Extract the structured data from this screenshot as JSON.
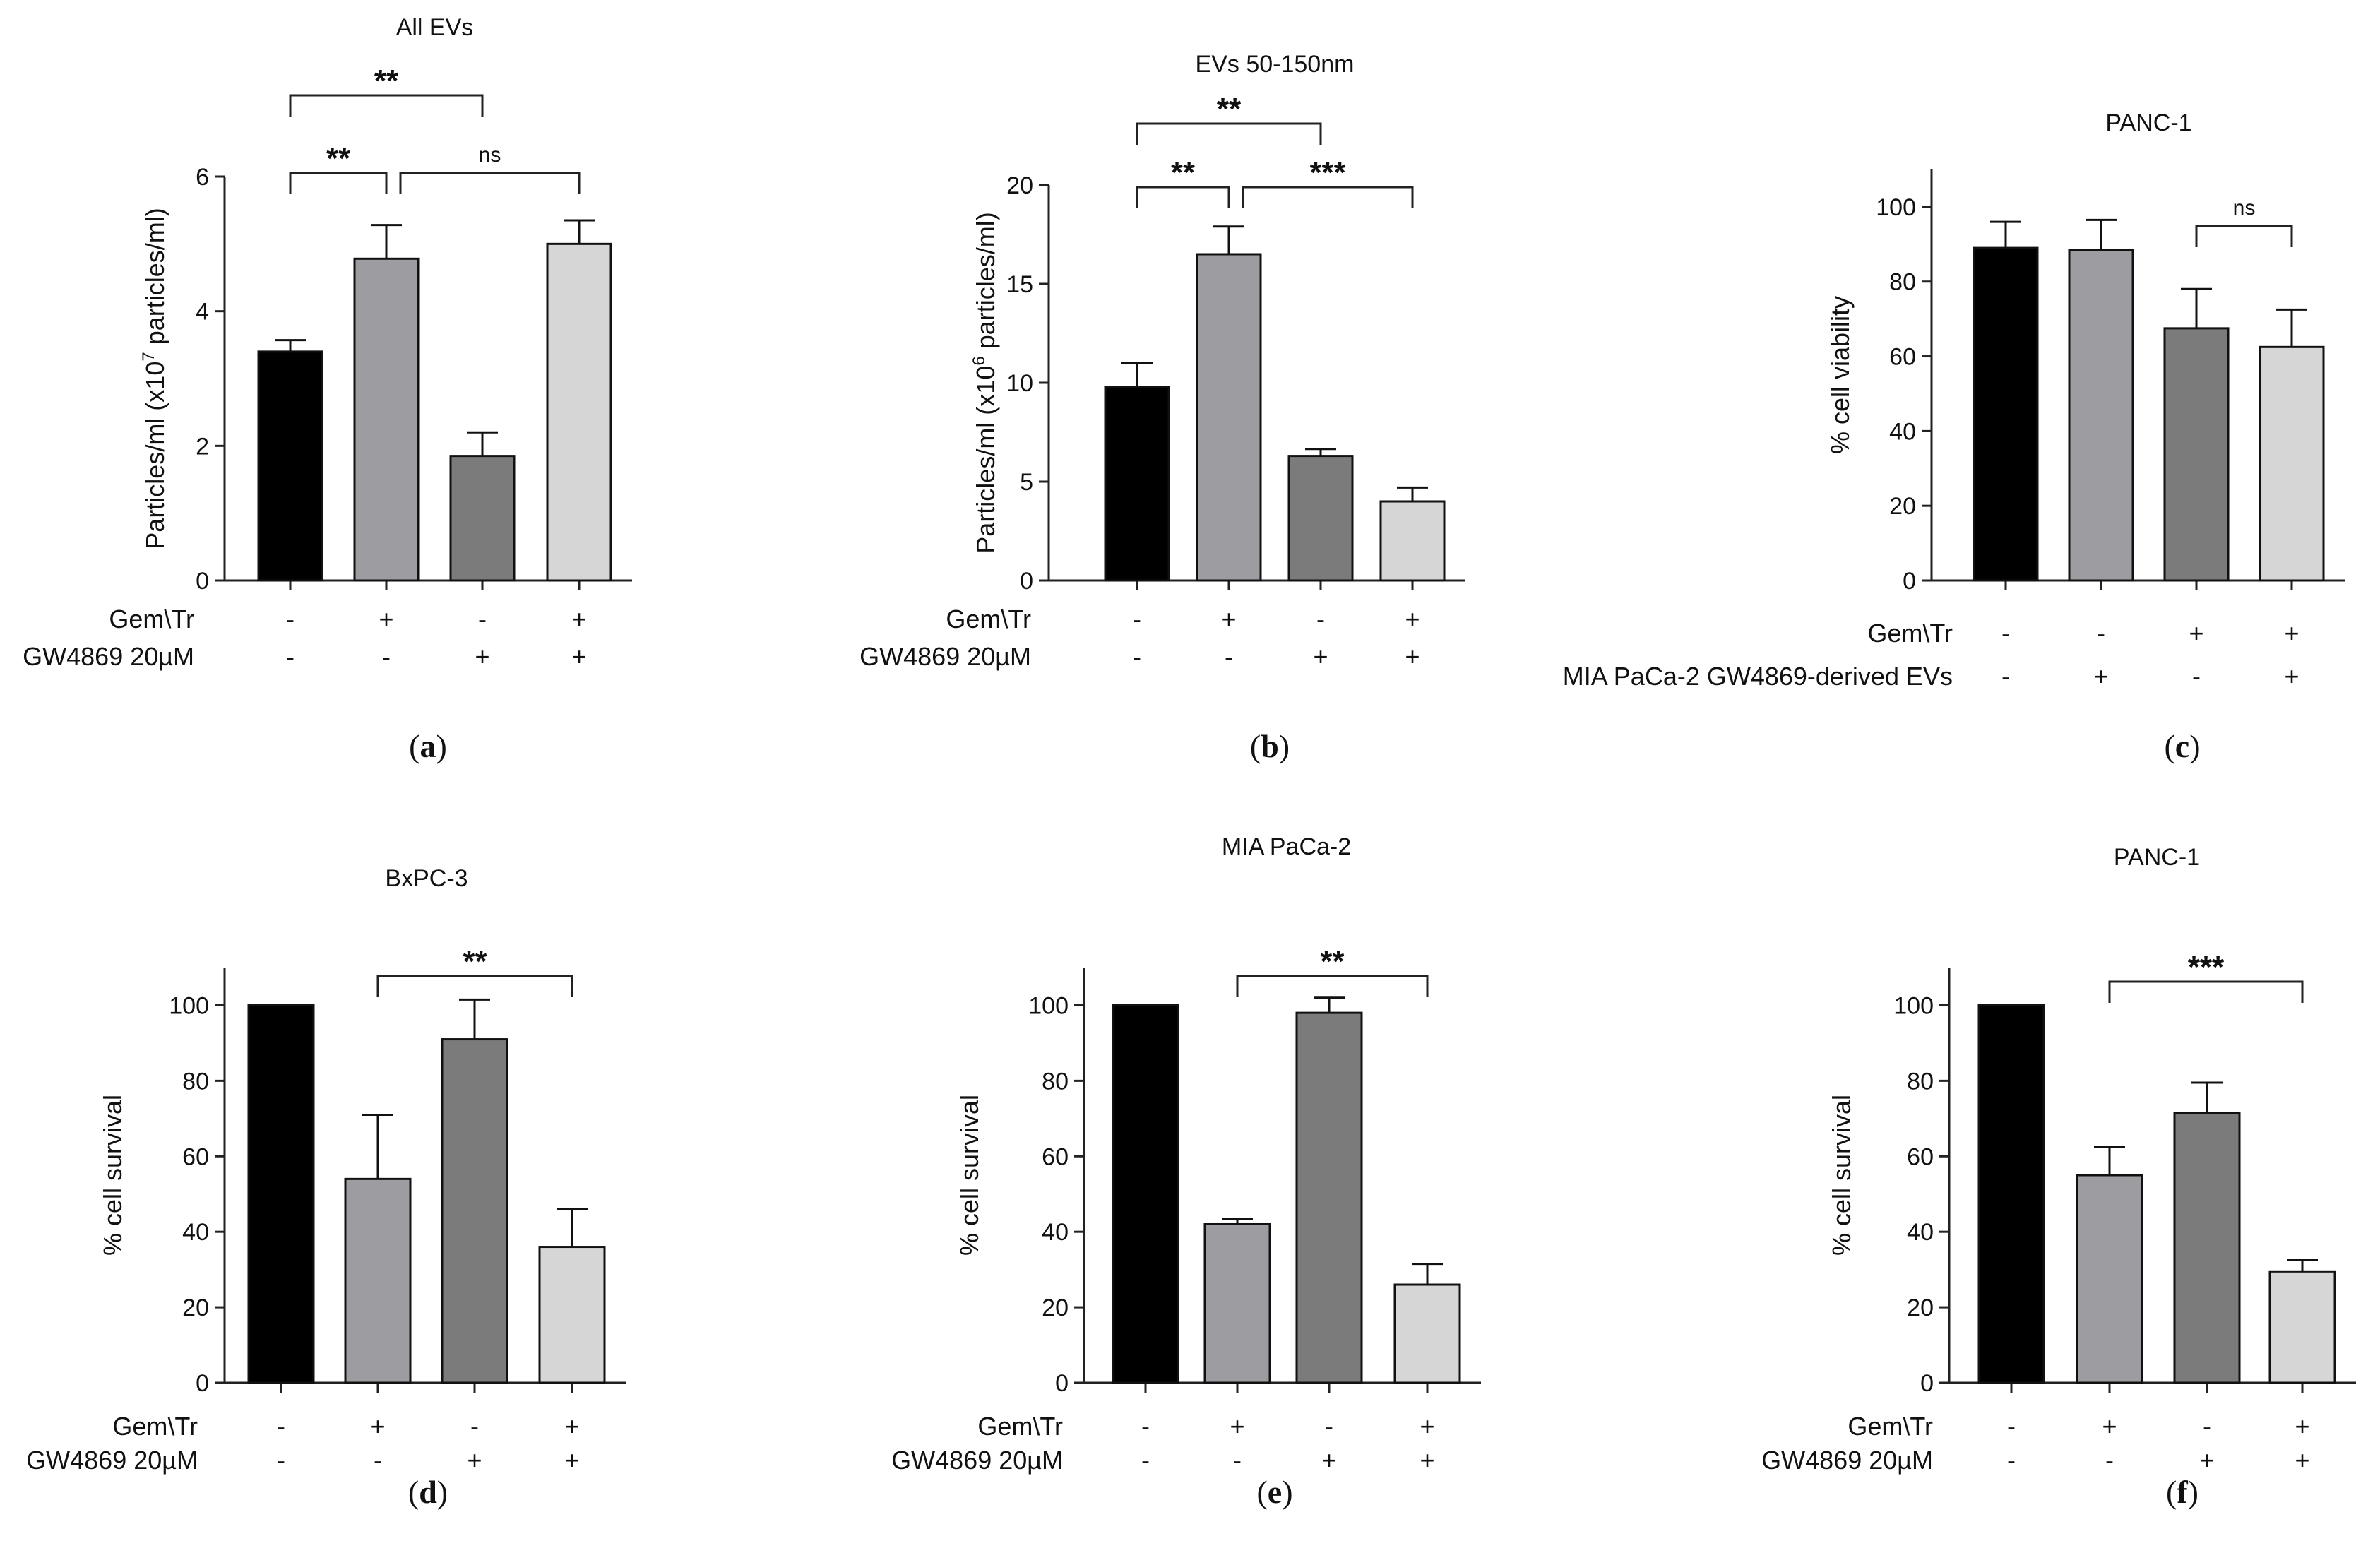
{
  "figure": {
    "background": "#ffffff",
    "panel_letter_open": "(",
    "panel_letter_close": ")"
  },
  "chart_data": [
    {
      "panel": "a",
      "type": "bar",
      "title": "All EVs",
      "ylabel": "Particles/ml (x10^7 particles/ml)",
      "ylabel_parts": [
        "Particles/ml (x10",
        "7",
        " particles/ml)"
      ],
      "ylim": [
        0,
        6
      ],
      "yticks": [
        0,
        2,
        4,
        6
      ],
      "categories": [
        "1",
        "2",
        "3",
        "4"
      ],
      "values": [
        3.4,
        4.78,
        1.85,
        5.0
      ],
      "errors": [
        0.17,
        0.5,
        0.35,
        0.35
      ],
      "colors": [
        "#000000",
        "#9d9ca1",
        "#7b7b7b",
        "#d6d6d6"
      ],
      "conditions": [
        {
          "label": "Gem\\Tr",
          "signs": [
            "-",
            "+",
            "-",
            "+"
          ]
        },
        {
          "label": "GW4869 20µM",
          "signs": [
            "-",
            "-",
            "+",
            "+"
          ]
        }
      ],
      "significance": [
        {
          "from": 0,
          "to": 1,
          "label": "**",
          "level": 1
        },
        {
          "from": 1,
          "to": 3,
          "label": "ns",
          "level": 1
        },
        {
          "from": 0,
          "to": 2,
          "label": "**",
          "level": 2
        }
      ]
    },
    {
      "panel": "b",
      "type": "bar",
      "title": "EVs 50-150nm",
      "ylabel": "Particles/ml (x10^6 particles/ml)",
      "ylabel_parts": [
        "Particles/ml (x10",
        "6",
        " particles/ml)"
      ],
      "ylim": [
        0,
        20
      ],
      "yticks": [
        0,
        5,
        10,
        15,
        20
      ],
      "categories": [
        "1",
        "2",
        "3",
        "4"
      ],
      "values": [
        9.8,
        16.5,
        6.3,
        4.0
      ],
      "errors": [
        1.2,
        1.4,
        0.35,
        0.7
      ],
      "colors": [
        "#000000",
        "#9d9ca1",
        "#7b7b7b",
        "#d6d6d6"
      ],
      "conditions": [
        {
          "label": "Gem\\Tr",
          "signs": [
            "-",
            "+",
            "-",
            "+"
          ]
        },
        {
          "label": "GW4869 20µM",
          "signs": [
            "-",
            "-",
            "+",
            "+"
          ]
        }
      ],
      "significance": [
        {
          "from": 0,
          "to": 1,
          "label": "**",
          "level": 1
        },
        {
          "from": 1,
          "to": 3,
          "label": "***",
          "level": 1
        },
        {
          "from": 0,
          "to": 2,
          "label": "**",
          "level": 2
        }
      ]
    },
    {
      "panel": "c",
      "type": "bar",
      "title": "PANC-1",
      "ylabel": "% cell viability",
      "ylim": [
        0,
        110
      ],
      "yticks": [
        0,
        20,
        40,
        60,
        80,
        100
      ],
      "categories": [
        "1",
        "2",
        "3",
        "4"
      ],
      "values": [
        89,
        88.5,
        67.5,
        62.5
      ],
      "errors": [
        7,
        8,
        10.5,
        10
      ],
      "colors": [
        "#000000",
        "#9d9ca1",
        "#7b7b7b",
        "#d6d6d6"
      ],
      "conditions": [
        {
          "label": "Gem\\Tr",
          "signs": [
            "-",
            "-",
            "+",
            "+"
          ]
        },
        {
          "label": "MIA PaCa-2 GW4869-derived EVs",
          "signs": [
            "-",
            "+",
            "-",
            "+"
          ]
        }
      ],
      "significance": [
        {
          "from": 2,
          "to": 3,
          "label": "ns",
          "level": 1
        }
      ]
    },
    {
      "panel": "d",
      "type": "bar",
      "title": "BxPC-3",
      "ylabel": "% cell survival",
      "ylim": [
        0,
        110
      ],
      "yticks": [
        0,
        20,
        40,
        60,
        80,
        100
      ],
      "categories": [
        "1",
        "2",
        "3",
        "4"
      ],
      "values": [
        100,
        54,
        91,
        36
      ],
      "errors": [
        0,
        17,
        10.5,
        10
      ],
      "colors": [
        "#000000",
        "#9d9ca1",
        "#7b7b7b",
        "#d6d6d6"
      ],
      "conditions": [
        {
          "label": "Gem\\Tr",
          "signs": [
            "-",
            "+",
            "-",
            "+"
          ]
        },
        {
          "label": "GW4869 20µM",
          "signs": [
            "-",
            "-",
            "+",
            "+"
          ]
        }
      ],
      "significance": [
        {
          "from": 1,
          "to": 3,
          "label": "**",
          "level": 1
        }
      ]
    },
    {
      "panel": "e",
      "type": "bar",
      "title": "MIA PaCa-2",
      "ylabel": "% cell survival",
      "ylim": [
        0,
        110
      ],
      "yticks": [
        0,
        20,
        40,
        60,
        80,
        100
      ],
      "categories": [
        "1",
        "2",
        "3",
        "4"
      ],
      "values": [
        100,
        42,
        98,
        26
      ],
      "errors": [
        0,
        1.5,
        4,
        5.5
      ],
      "colors": [
        "#000000",
        "#9d9ca1",
        "#7b7b7b",
        "#d6d6d6"
      ],
      "conditions": [
        {
          "label": "Gem\\Tr",
          "signs": [
            "-",
            "+",
            "-",
            "+"
          ]
        },
        {
          "label": "GW4869 20µM",
          "signs": [
            "-",
            "-",
            "+",
            "+"
          ]
        }
      ],
      "significance": [
        {
          "from": 1,
          "to": 3,
          "label": "**",
          "level": 1
        }
      ]
    },
    {
      "panel": "f",
      "type": "bar",
      "title": "PANC-1",
      "ylabel": "% cell survival",
      "ylim": [
        0,
        110
      ],
      "yticks": [
        0,
        20,
        40,
        60,
        80,
        100
      ],
      "categories": [
        "1",
        "2",
        "3",
        "4"
      ],
      "values": [
        100,
        55,
        71.5,
        29.5
      ],
      "errors": [
        0,
        7.5,
        8,
        3
      ],
      "colors": [
        "#000000",
        "#9d9ca1",
        "#7b7b7b",
        "#d6d6d6"
      ],
      "conditions": [
        {
          "label": "Gem\\Tr",
          "signs": [
            "-",
            "+",
            "-",
            "+"
          ]
        },
        {
          "label": "GW4869 20µM",
          "signs": [
            "-",
            "-",
            "+",
            "+"
          ]
        }
      ],
      "significance": [
        {
          "from": 1,
          "to": 3,
          "label": "***",
          "level": 1
        }
      ]
    }
  ]
}
